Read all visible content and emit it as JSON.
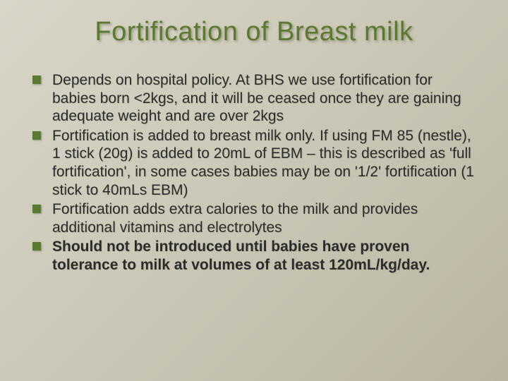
{
  "slide": {
    "title": "Fortification of Breast milk",
    "title_color": "#5a7a2f",
    "title_fontsize": 38,
    "body_fontsize": 21,
    "bullet_marker_color": "#5a7a2f",
    "background_gradient": [
      "#d8d6c8",
      "#cecaba",
      "#c4c0ae",
      "#b8b4a0"
    ],
    "bullets": [
      {
        "text": "Depends on hospital policy. At BHS we use fortification for babies born <2kgs, and it will be ceased once they are gaining adequate weight and are over 2kgs",
        "bold": false
      },
      {
        "text": "Fortification is added to breast milk only. If using FM 85 (nestle), 1 stick (20g) is added to 20mL of EBM – this is described as 'full fortification', in some cases babies may be on '1/2' fortification (1 stick to 40mLs EBM)",
        "bold": false
      },
      {
        "text": "Fortification adds extra calories to the milk and provides additional vitamins and electrolytes",
        "bold": false
      },
      {
        "text": "Should not be introduced until babies have proven tolerance to milk at volumes of at least 120mL/kg/day.",
        "bold": true
      }
    ]
  }
}
